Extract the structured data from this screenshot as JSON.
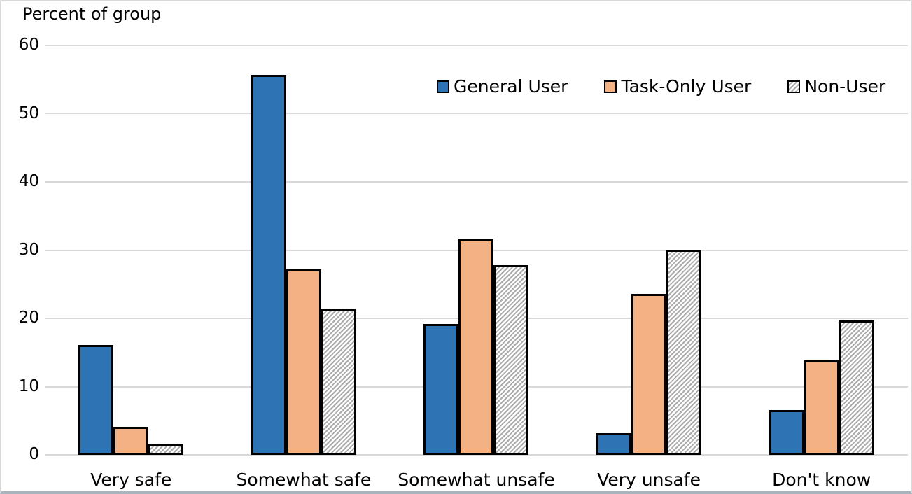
{
  "chart_data": {
    "type": "bar",
    "title": "Percent of group",
    "ylabel": "Percent of group",
    "xlabel": "",
    "categories": [
      "Very safe",
      "Somewhat safe",
      "Somewhat unsafe",
      "Very unsafe",
      "Don't know"
    ],
    "series": [
      {
        "name": "General User",
        "color": "#2E74B5",
        "pattern": "solid",
        "values": [
          15.9,
          55.5,
          19.0,
          3.0,
          6.4
        ]
      },
      {
        "name": "Task-Only User",
        "color": "#F4B183",
        "pattern": "solid",
        "values": [
          3.9,
          27.0,
          31.4,
          23.4,
          13.6
        ]
      },
      {
        "name": "Non-User",
        "color": "#FFFFFF",
        "pattern": "diagonal-hatch",
        "hatch_color": "#ABABAB",
        "values": [
          1.4,
          21.2,
          27.6,
          29.8,
          19.5
        ]
      }
    ],
    "ylim": [
      0,
      60
    ],
    "yticks": [
      0,
      10,
      20,
      30,
      40,
      50,
      60
    ],
    "grid": true,
    "gridline_color": "#D9D9D9",
    "bar_border_color": "#000000",
    "legend_position": "top-right"
  }
}
